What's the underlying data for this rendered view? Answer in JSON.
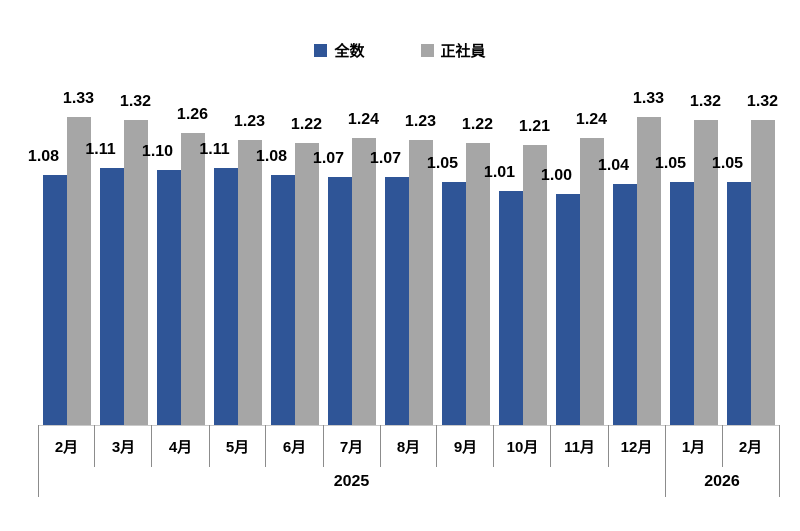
{
  "legend": {
    "items": [
      {
        "label": "全数",
        "color": "#2F5597"
      },
      {
        "label": "正社員",
        "color": "#A6A6A6"
      }
    ]
  },
  "chart_data": {
    "type": "bar",
    "categories": [
      "2月",
      "3月",
      "4月",
      "5月",
      "6月",
      "7月",
      "8月",
      "9月",
      "10月",
      "11月",
      "12月",
      "1月",
      "2月"
    ],
    "year_groups": [
      {
        "label": "2025",
        "span": 11
      },
      {
        "label": "2026",
        "span": 2
      }
    ],
    "series": [
      {
        "name": "全数",
        "color": "#2F5597",
        "values": [
          1.08,
          1.11,
          1.1,
          1.11,
          1.08,
          1.07,
          1.07,
          1.05,
          1.01,
          1.0,
          1.04,
          1.05,
          1.05
        ]
      },
      {
        "name": "正社員",
        "color": "#A6A6A6",
        "values": [
          1.33,
          1.32,
          1.26,
          1.23,
          1.22,
          1.24,
          1.23,
          1.22,
          1.21,
          1.24,
          1.33,
          1.32,
          1.32
        ]
      }
    ],
    "title": "",
    "xlabel": "",
    "ylabel": "",
    "ylim": [
      0,
      1.4
    ],
    "value_label_decimals": 2,
    "grid": "off",
    "legend_position": "top-center",
    "axis_line_color": "#c9c9c9",
    "tick_color": "#8c8c8c"
  }
}
